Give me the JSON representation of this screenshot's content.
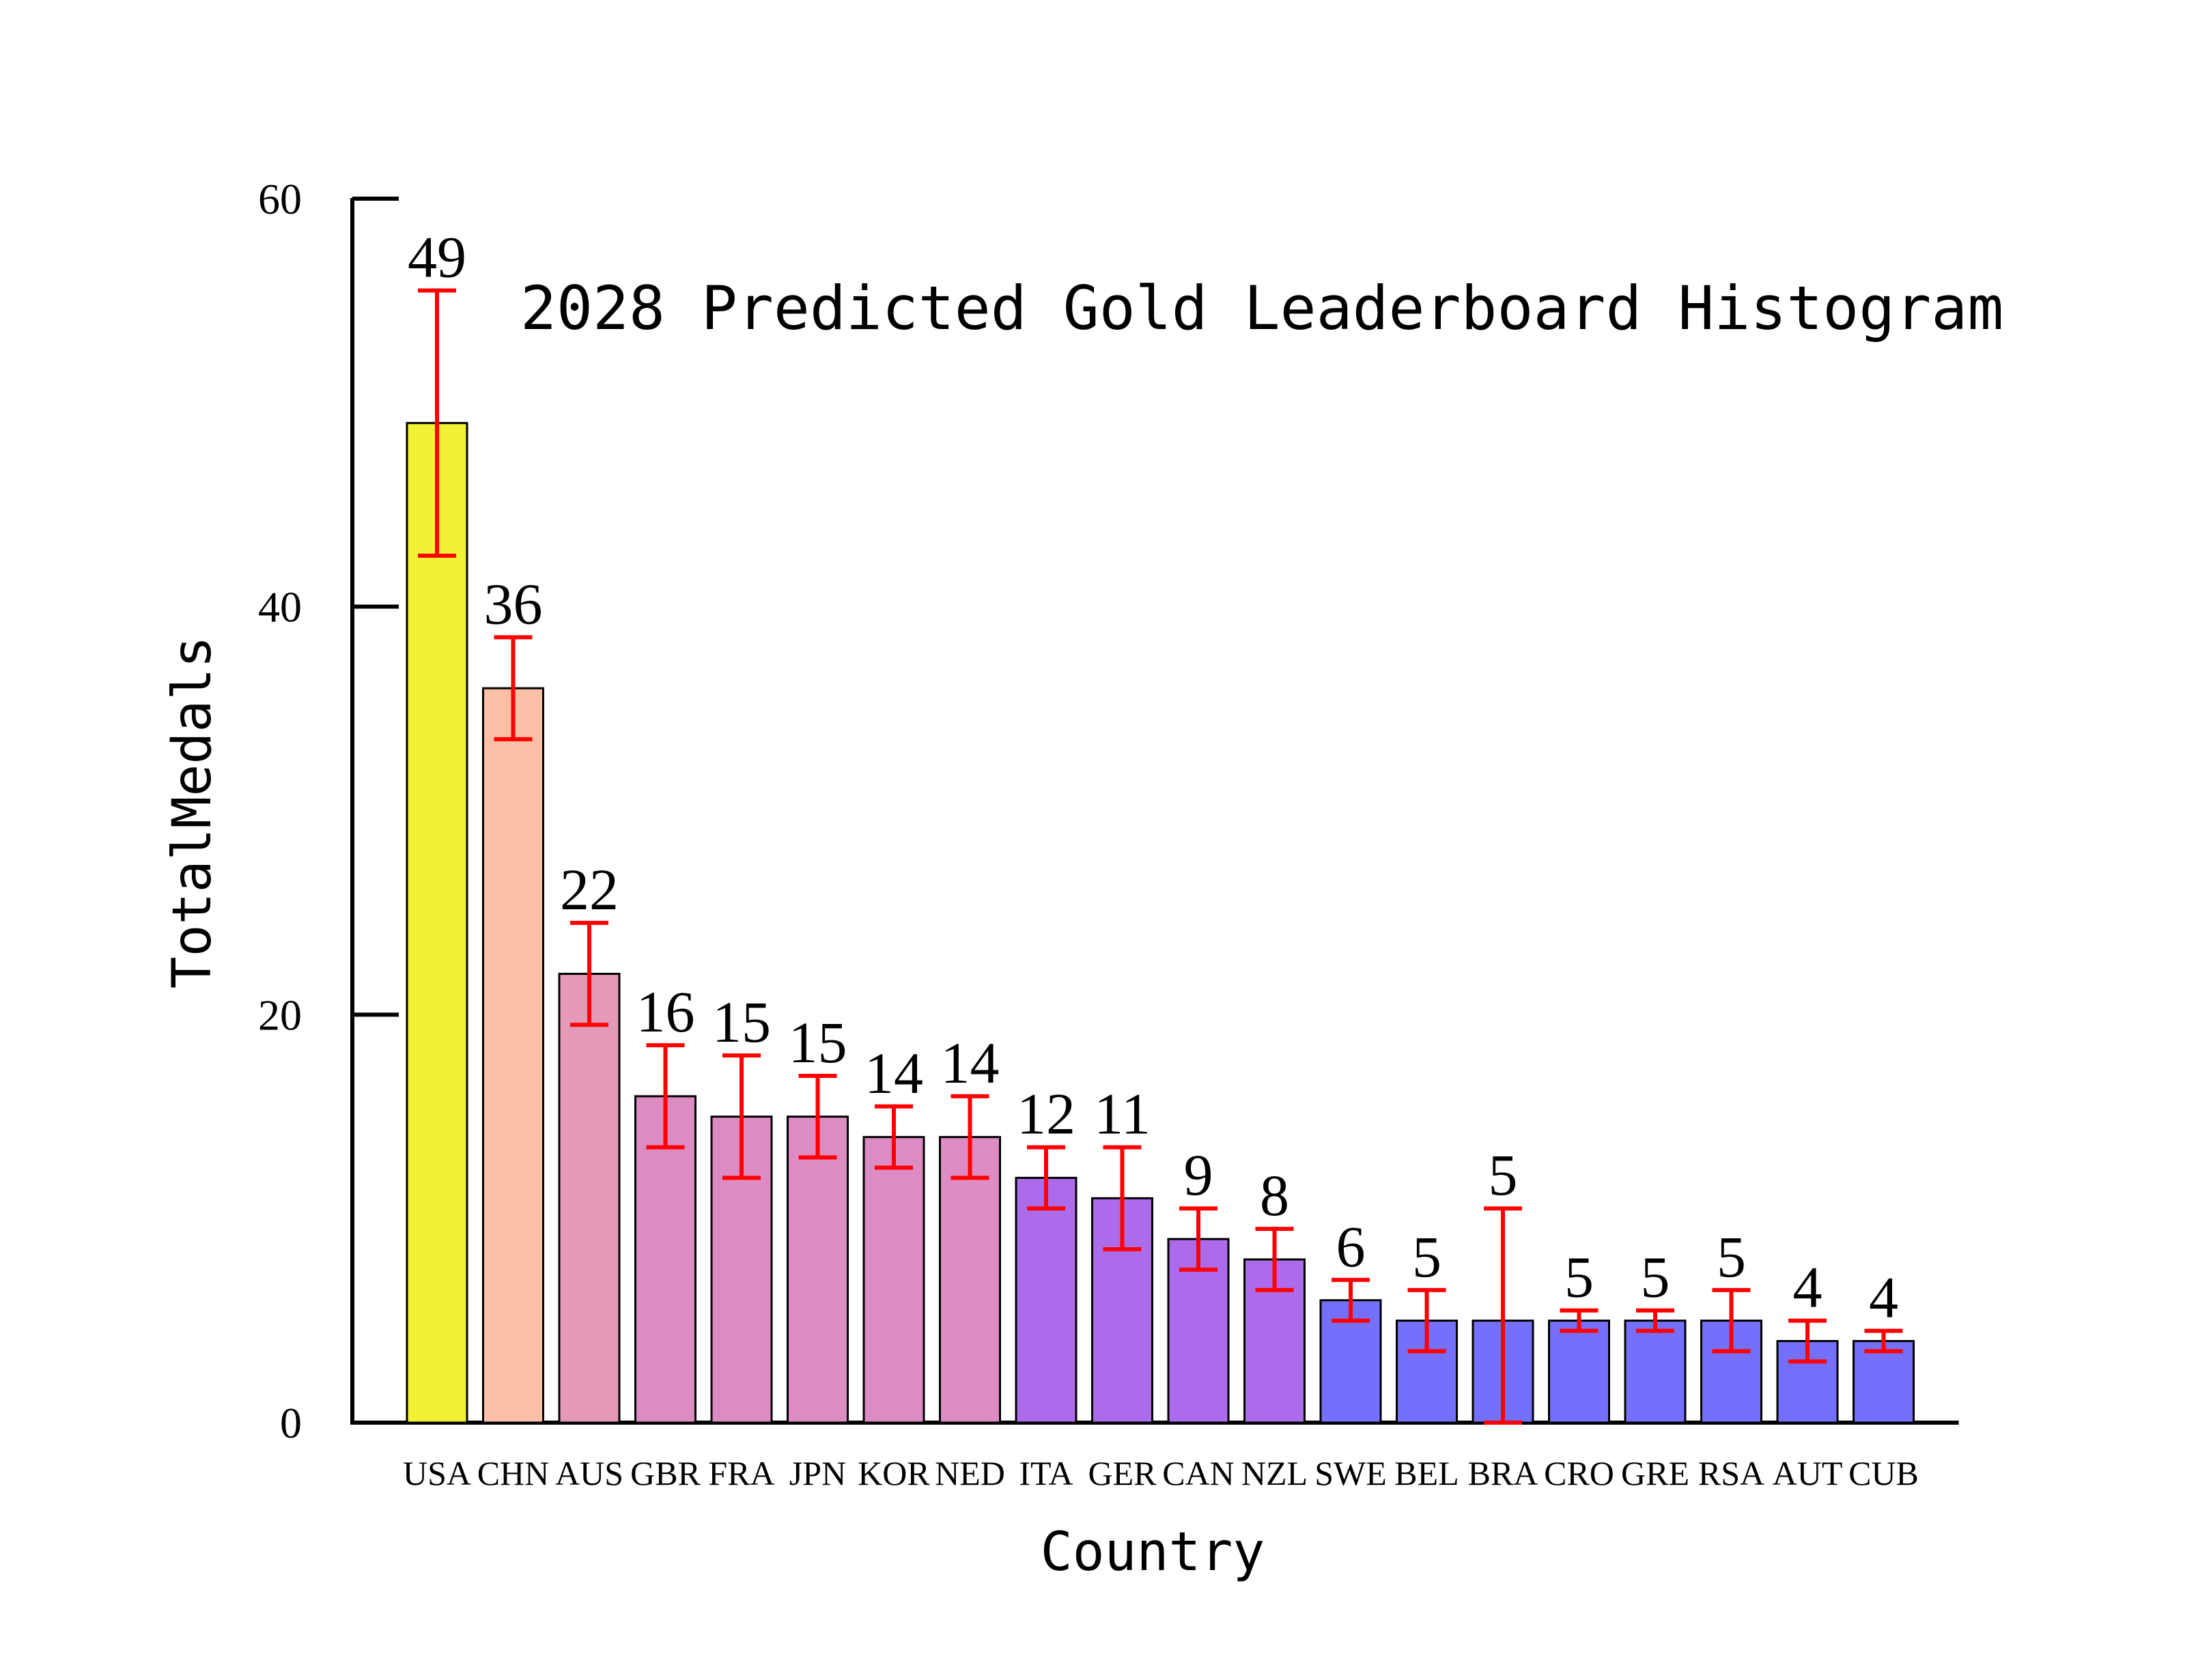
{
  "chart_data": {
    "type": "bar",
    "title": "2028 Predicted Gold Leaderboard Histogram",
    "xlabel": "Country",
    "ylabel": "TotalMedals",
    "ylim": [
      0,
      60
    ],
    "yticks": [
      0,
      20,
      40,
      60
    ],
    "grid": false,
    "categories": [
      "USA",
      "CHN",
      "AUS",
      "GBR",
      "FRA",
      "JPN",
      "KOR",
      "NED",
      "ITA",
      "GER",
      "CAN",
      "NZL",
      "SWE",
      "BEL",
      "BRA",
      "CRO",
      "GRE",
      "RSA",
      "AUT",
      "CUB"
    ],
    "values": [
      49,
      36,
      22,
      16,
      15,
      15,
      14,
      14,
      12,
      11,
      9,
      8,
      6,
      5,
      5,
      5,
      5,
      5,
      4,
      4
    ],
    "error_low": [
      42.5,
      33.5,
      19.5,
      13.5,
      12,
      13,
      12.5,
      12,
      10.5,
      8.5,
      7.5,
      6.5,
      5,
      3.5,
      0,
      4.5,
      4.5,
      3.5,
      3,
      3.5
    ],
    "error_high": [
      55.5,
      38.5,
      24.5,
      18.5,
      18,
      17,
      15.5,
      16,
      13.5,
      13.5,
      10.5,
      9.5,
      7,
      6.5,
      10.5,
      5.5,
      5.5,
      6.5,
      5,
      4.5
    ],
    "bar_labels": [
      "49",
      "36",
      "22",
      "16",
      "15",
      "15",
      "14",
      "14",
      "12",
      "11",
      "9",
      "8",
      "6",
      "5",
      "5",
      "5",
      "5",
      "5",
      "4",
      "4"
    ],
    "colors": [
      "#f2f235",
      "#fbc0a6",
      "#e49ab7",
      "#dd8cc3",
      "#dd8cc3",
      "#dd8cc3",
      "#dd8cc3",
      "#dd8cc3",
      "#ac6beb",
      "#ac6beb",
      "#ac6beb",
      "#ac6beb",
      "#7470fb",
      "#7470fb",
      "#7470fb",
      "#7470fb",
      "#7470fb",
      "#7470fb",
      "#7470fb",
      "#7470fb"
    ],
    "error_color": "#ff0000"
  }
}
